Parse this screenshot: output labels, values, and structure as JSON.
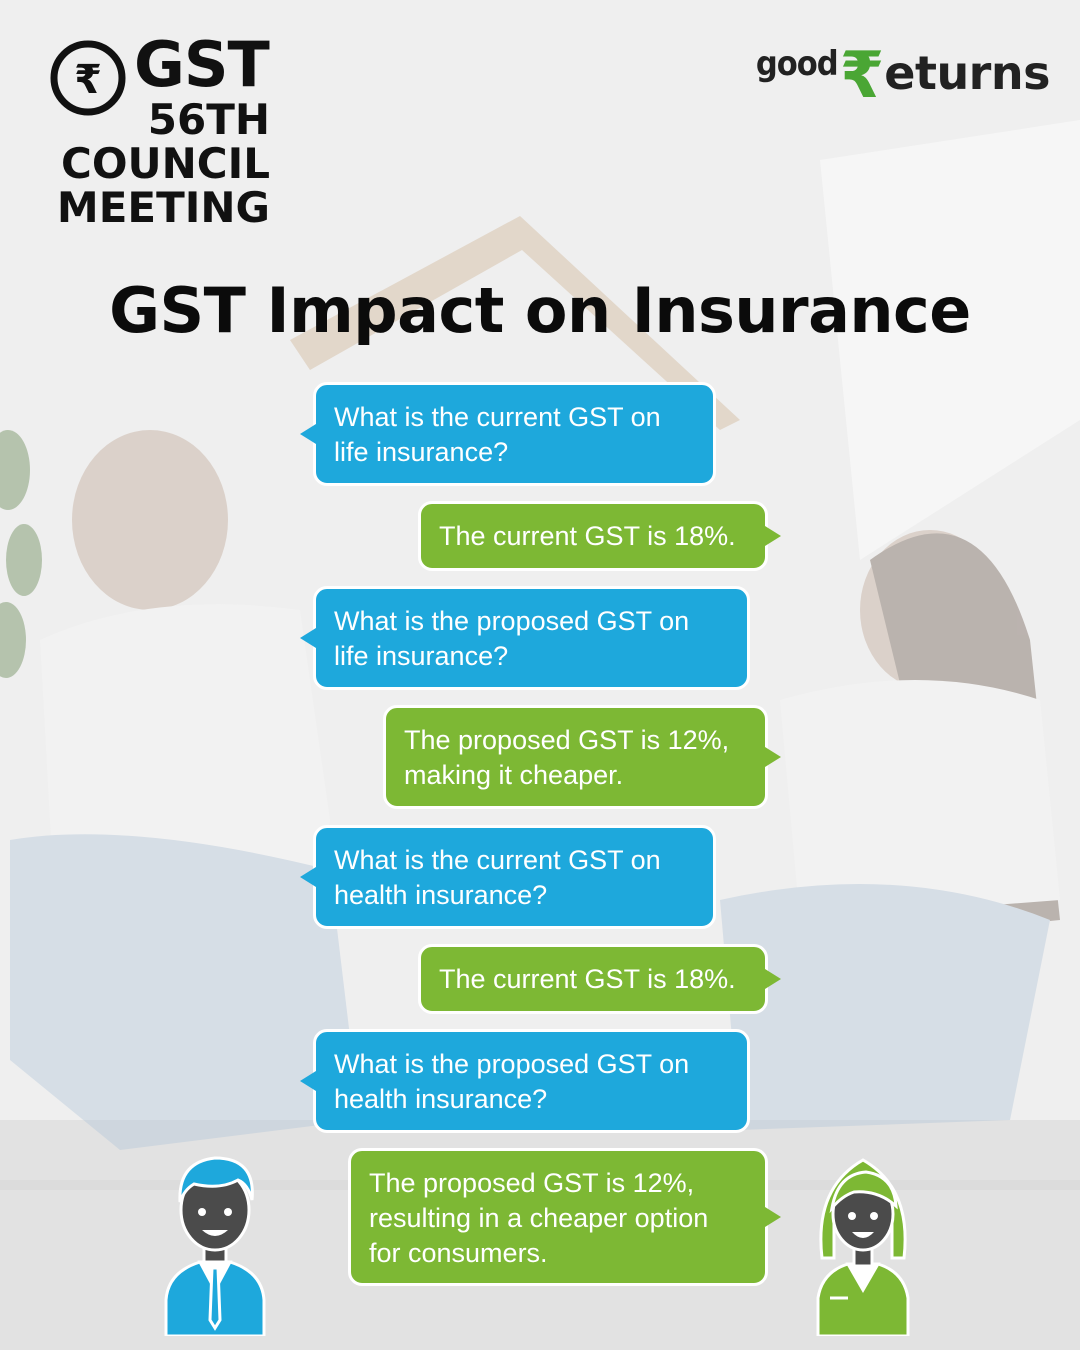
{
  "logo": {
    "icon": "rupee-circle-icon",
    "title": "GST",
    "subtitle_lines": [
      "56TH",
      "COUNCIL",
      "MEETING"
    ]
  },
  "brand": {
    "part1": "good",
    "rupee": "₹",
    "part2": "eturns",
    "color_green": "#4aa634"
  },
  "headline": "GST Impact on Insurance",
  "chat": [
    {
      "role": "question",
      "text": "What is the current GST on\nlife insurance?"
    },
    {
      "role": "answer",
      "text": "The current GST is 18%."
    },
    {
      "role": "question",
      "text": "What is the proposed GST on\nlife insurance?"
    },
    {
      "role": "answer",
      "text": "The proposed GST is 12%,\nmaking it cheaper."
    },
    {
      "role": "question",
      "text": "What is the current GST on\nhealth insurance?"
    },
    {
      "role": "answer",
      "text": "The current GST is 18%."
    },
    {
      "role": "question",
      "text": "What is the proposed GST on\nhealth insurance?"
    },
    {
      "role": "answer",
      "text": "The proposed GST is 12%,\nresulting in a cheaper option\nfor consumers."
    }
  ],
  "colors": {
    "question_bubble": "#1ea8dc",
    "answer_bubble": "#7db834"
  },
  "avatars": {
    "left": "man-avatar-icon",
    "right": "woman-avatar-icon"
  }
}
